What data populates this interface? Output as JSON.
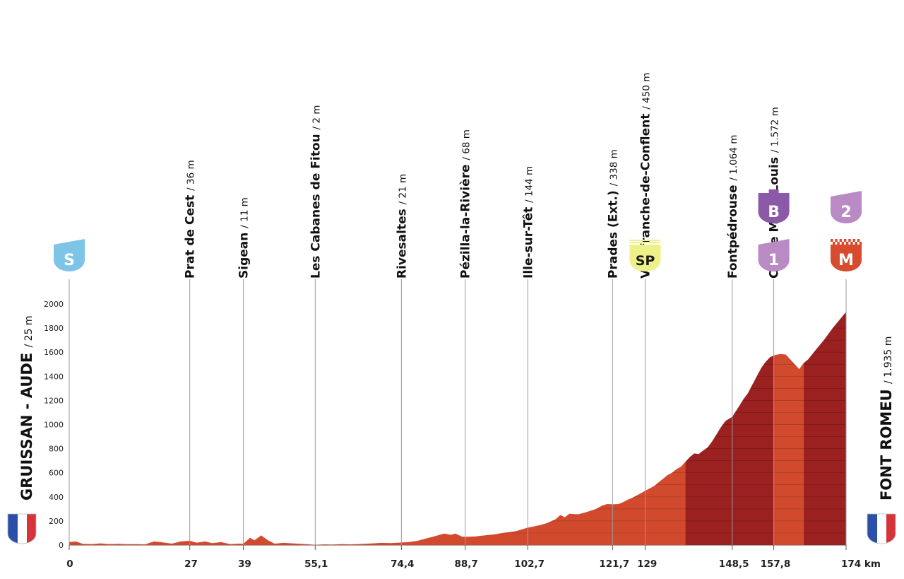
{
  "chart_data": {
    "type": "area",
    "x_unit": "km",
    "xlim": [
      0,
      174
    ],
    "ylim": [
      0,
      2000
    ],
    "y_ticks": [
      0,
      200,
      400,
      600,
      800,
      1000,
      1200,
      1400,
      1600,
      1800,
      2000
    ],
    "x_ticks": [
      {
        "km": 0,
        "label": "0"
      },
      {
        "km": 27,
        "label": "27"
      },
      {
        "km": 39,
        "label": "39"
      },
      {
        "km": 55.1,
        "label": "55,1"
      },
      {
        "km": 74.4,
        "label": "74,4"
      },
      {
        "km": 88.7,
        "label": "88,7"
      },
      {
        "km": 102.7,
        "label": "102,7"
      },
      {
        "km": 121.7,
        "label": "121,7"
      },
      {
        "km": 129,
        "label": "129"
      },
      {
        "km": 148.5,
        "label": "148,5"
      },
      {
        "km": 157.8,
        "label": "157,8"
      },
      {
        "km": 174,
        "label": "174 km"
      }
    ],
    "start": {
      "name": "GRUISSAN - AUDE",
      "alt": "/ 25 m"
    },
    "finish": {
      "name": "FONT ROMEU",
      "alt": "/ 1.935 m"
    },
    "waypoints": [
      {
        "km": 27,
        "name": "Prat de Cest",
        "alt": "/ 36 m"
      },
      {
        "km": 39,
        "name": "Sigean",
        "alt": "/ 11 m"
      },
      {
        "km": 55.1,
        "name": "Les Cabanes de Fitou",
        "alt": "/ 2 m"
      },
      {
        "km": 74.4,
        "name": "Rivesaltes",
        "alt": "/ 21 m"
      },
      {
        "km": 88.7,
        "name": "Pézilla-la-Rivière",
        "alt": "/ 68 m"
      },
      {
        "km": 102.7,
        "name": "Ille-sur-Têt",
        "alt": "/ 144 m"
      },
      {
        "km": 121.7,
        "name": "Prades (Ext.)",
        "alt": "/ 338 m"
      },
      {
        "km": 129,
        "name": "Villefranche-de-Conflent",
        "alt": "/ 450 m"
      },
      {
        "km": 148.5,
        "name": "Fontpédrouse",
        "alt": "/ 1.064 m"
      },
      {
        "km": 157.8,
        "name": "Col de Mont-Louis",
        "alt": "/ 1.572 m"
      }
    ],
    "markers": [
      {
        "km": 0,
        "label": "S",
        "kind": "start",
        "color": "#7ec4e6"
      },
      {
        "km": 129,
        "label": "SP",
        "kind": "sprint",
        "color": "#eef08a"
      },
      {
        "km": 157.8,
        "label": "1",
        "kind": "climb-cat",
        "color": "#b98ac4"
      },
      {
        "km": 157.8,
        "label": "B",
        "kind": "bonus",
        "color": "#8a5aa8"
      },
      {
        "km": 174,
        "label": "M",
        "kind": "finish",
        "color": "#d84b2f"
      },
      {
        "km": 174,
        "label": "2",
        "kind": "climb-cat",
        "color": "#b98ac4"
      }
    ],
    "profile": [
      [
        0,
        25
      ],
      [
        1.5,
        30
      ],
      [
        3,
        10
      ],
      [
        5,
        8
      ],
      [
        7,
        14
      ],
      [
        9,
        8
      ],
      [
        11,
        10
      ],
      [
        13,
        7
      ],
      [
        15,
        8
      ],
      [
        17,
        6
      ],
      [
        19,
        30
      ],
      [
        21,
        22
      ],
      [
        23,
        12
      ],
      [
        25,
        30
      ],
      [
        27,
        36
      ],
      [
        28.5,
        20
      ],
      [
        30.5,
        30
      ],
      [
        32,
        15
      ],
      [
        34,
        25
      ],
      [
        36,
        8
      ],
      [
        38,
        12
      ],
      [
        39,
        11
      ],
      [
        40.5,
        60
      ],
      [
        41.5,
        40
      ],
      [
        43,
        80
      ],
      [
        44.5,
        40
      ],
      [
        46,
        12
      ],
      [
        48,
        18
      ],
      [
        50,
        14
      ],
      [
        52,
        10
      ],
      [
        54,
        5
      ],
      [
        55.1,
        2
      ],
      [
        57,
        6
      ],
      [
        59,
        4
      ],
      [
        61,
        8
      ],
      [
        63,
        6
      ],
      [
        66,
        10
      ],
      [
        68,
        14
      ],
      [
        70,
        18
      ],
      [
        72,
        16
      ],
      [
        74.4,
        21
      ],
      [
        76,
        25
      ],
      [
        78,
        35
      ],
      [
        80,
        55
      ],
      [
        82,
        75
      ],
      [
        84,
        95
      ],
      [
        85.5,
        85
      ],
      [
        86.5,
        95
      ],
      [
        88,
        70
      ],
      [
        88.7,
        68
      ],
      [
        91,
        72
      ],
      [
        93,
        80
      ],
      [
        95,
        88
      ],
      [
        97,
        100
      ],
      [
        100,
        115
      ],
      [
        102.7,
        144
      ],
      [
        105,
        162
      ],
      [
        107,
        182
      ],
      [
        109,
        215
      ],
      [
        110,
        250
      ],
      [
        111,
        230
      ],
      [
        112,
        260
      ],
      [
        114,
        255
      ],
      [
        116,
        275
      ],
      [
        118,
        300
      ],
      [
        119.5,
        330
      ],
      [
        120.5,
        340
      ],
      [
        121.7,
        338
      ],
      [
        123,
        340
      ],
      [
        124,
        355
      ],
      [
        125,
        375
      ],
      [
        126,
        390
      ],
      [
        127,
        410
      ],
      [
        128,
        430
      ],
      [
        129,
        450
      ],
      [
        130,
        470
      ],
      [
        131,
        490
      ],
      [
        132,
        520
      ],
      [
        133,
        550
      ],
      [
        134,
        580
      ],
      [
        135,
        600
      ],
      [
        136,
        630
      ],
      [
        137,
        650
      ],
      [
        138,
        690
      ],
      [
        139,
        730
      ],
      [
        140,
        760
      ],
      [
        141,
        755
      ],
      [
        142,
        785
      ],
      [
        143,
        810
      ],
      [
        144,
        860
      ],
      [
        145,
        920
      ],
      [
        146,
        980
      ],
      [
        147,
        1030
      ],
      [
        148.5,
        1064
      ],
      [
        150,
        1150
      ],
      [
        151,
        1210
      ],
      [
        152,
        1260
      ],
      [
        153,
        1330
      ],
      [
        154,
        1400
      ],
      [
        155,
        1470
      ],
      [
        156,
        1520
      ],
      [
        157,
        1560
      ],
      [
        157.8,
        1572
      ],
      [
        158.5,
        1580
      ],
      [
        159.5,
        1585
      ],
      [
        160.5,
        1580
      ],
      [
        161.5,
        1540
      ],
      [
        162.5,
        1500
      ],
      [
        163.5,
        1460
      ],
      [
        164.5,
        1510
      ],
      [
        165.5,
        1540
      ],
      [
        167,
        1610
      ],
      [
        169,
        1700
      ],
      [
        171,
        1800
      ],
      [
        174,
        1935
      ]
    ],
    "segments": [
      {
        "from": 0,
        "to": 138,
        "color": "#d24a2e"
      },
      {
        "from": 138,
        "to": 157.8,
        "color": "#9b2020"
      },
      {
        "from": 157.8,
        "to": 164.5,
        "color": "#d24a2e"
      },
      {
        "from": 164.5,
        "to": 174,
        "color": "#9b2020"
      }
    ]
  }
}
